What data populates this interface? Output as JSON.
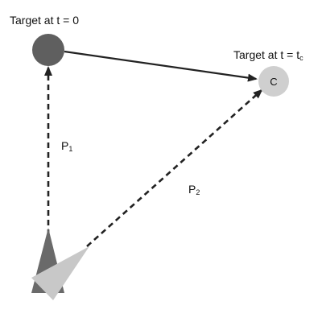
{
  "labels": {
    "target_start": "Target at t = 0",
    "target_end_prefix": "Target at t = t",
    "target_end_sub": "c",
    "collision_marker": "C",
    "path1_base": "P",
    "path1_sub": "1",
    "path2_base": "P",
    "path2_sub": "2"
  },
  "colors": {
    "target_start_fill": "#5f5f5f",
    "target_end_fill": "#cfcfcf",
    "pursuer1_fill": "#6a6a6a",
    "pursuer2_fill": "#c8c8c8",
    "line": "#222222"
  }
}
